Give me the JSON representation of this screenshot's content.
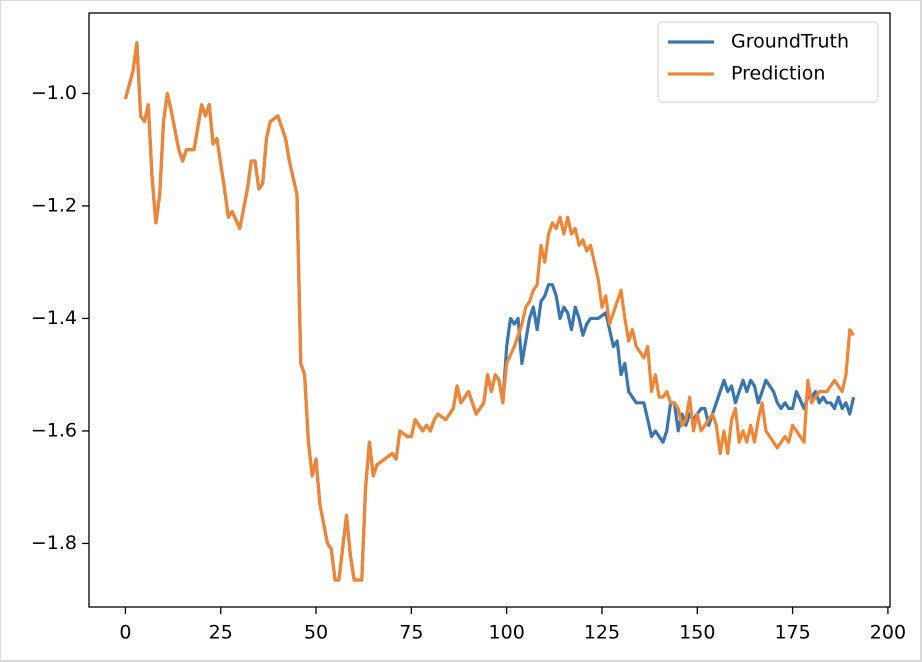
{
  "chart_data": {
    "type": "line",
    "xlim": [
      -9.55,
      200.55
    ],
    "ylim": [
      -1.913,
      -0.857
    ],
    "xticks": [
      0,
      25,
      50,
      75,
      100,
      125,
      150,
      175,
      200
    ],
    "yticks": [
      {
        "value": -1.8,
        "label": "−1.8"
      },
      {
        "value": -1.6,
        "label": "−1.6"
      },
      {
        "value": -1.4,
        "label": "−1.4"
      },
      {
        "value": -1.2,
        "label": "−1.2"
      },
      {
        "value": -1.0,
        "label": "−1.0"
      }
    ],
    "legend": "upper right",
    "series": [
      {
        "name": "GroundTruth",
        "color": "#3a75ae",
        "x": [
          0,
          2,
          3,
          4,
          5,
          6,
          7,
          8,
          9,
          10,
          11,
          12,
          14,
          15,
          16,
          18,
          19,
          20,
          21,
          22,
          23,
          24,
          26,
          27,
          28,
          30,
          32,
          33,
          34,
          35,
          36,
          37,
          38,
          40,
          42,
          43,
          45,
          46,
          47,
          48,
          49,
          50,
          51,
          53,
          54,
          55,
          56,
          58,
          59,
          60,
          62,
          63,
          64,
          65,
          66,
          68,
          70,
          71,
          72,
          74,
          75,
          76,
          78,
          79,
          80,
          81,
          82,
          84,
          85,
          86,
          87,
          88,
          90,
          91,
          92,
          94,
          95,
          96,
          97,
          98,
          99,
          100,
          101,
          102,
          103,
          104,
          105,
          106,
          107,
          108,
          109,
          110,
          111,
          112,
          113,
          114,
          115,
          116,
          117,
          118,
          119,
          120,
          121,
          122,
          124,
          126,
          127,
          128,
          129,
          130,
          131,
          132,
          134,
          136,
          137,
          138,
          139,
          141,
          142,
          143,
          144,
          145,
          146,
          147,
          148,
          149,
          151,
          152,
          153,
          154,
          155,
          156,
          157,
          158,
          159,
          160,
          161,
          162,
          163,
          164,
          165,
          166,
          167,
          168,
          170,
          171,
          172,
          173,
          174,
          175,
          176,
          178,
          179,
          180,
          181,
          182,
          183,
          184,
          185,
          186,
          187,
          188,
          189,
          190,
          191
        ],
        "values": [
          -1.01,
          -0.96,
          -0.91,
          -1.04,
          -1.05,
          -1.02,
          -1.15,
          -1.23,
          -1.18,
          -1.05,
          -1.0,
          -1.03,
          -1.1,
          -1.12,
          -1.1,
          -1.1,
          -1.06,
          -1.02,
          -1.04,
          -1.02,
          -1.09,
          -1.08,
          -1.17,
          -1.22,
          -1.21,
          -1.24,
          -1.17,
          -1.12,
          -1.12,
          -1.17,
          -1.16,
          -1.08,
          -1.05,
          -1.04,
          -1.08,
          -1.12,
          -1.18,
          -1.48,
          -1.5,
          -1.62,
          -1.68,
          -1.65,
          -1.73,
          -1.8,
          -1.81,
          -1.865,
          -1.865,
          -1.75,
          -1.82,
          -1.865,
          -1.865,
          -1.7,
          -1.62,
          -1.68,
          -1.66,
          -1.65,
          -1.64,
          -1.65,
          -1.6,
          -1.61,
          -1.61,
          -1.58,
          -1.6,
          -1.59,
          -1.6,
          -1.58,
          -1.57,
          -1.58,
          -1.57,
          -1.56,
          -1.52,
          -1.55,
          -1.53,
          -1.55,
          -1.57,
          -1.55,
          -1.5,
          -1.53,
          -1.5,
          -1.51,
          -1.55,
          -1.45,
          -1.4,
          -1.41,
          -1.4,
          -1.48,
          -1.44,
          -1.4,
          -1.38,
          -1.42,
          -1.37,
          -1.36,
          -1.34,
          -1.34,
          -1.36,
          -1.4,
          -1.38,
          -1.39,
          -1.42,
          -1.38,
          -1.4,
          -1.43,
          -1.41,
          -1.4,
          -1.4,
          -1.39,
          -1.42,
          -1.45,
          -1.44,
          -1.5,
          -1.48,
          -1.53,
          -1.55,
          -1.55,
          -1.58,
          -1.61,
          -1.6,
          -1.62,
          -1.6,
          -1.55,
          -1.55,
          -1.6,
          -1.57,
          -1.59,
          -1.57,
          -1.58,
          -1.56,
          -1.56,
          -1.59,
          -1.57,
          -1.55,
          -1.53,
          -1.51,
          -1.53,
          -1.52,
          -1.55,
          -1.53,
          -1.51,
          -1.53,
          -1.51,
          -1.52,
          -1.55,
          -1.53,
          -1.51,
          -1.53,
          -1.55,
          -1.56,
          -1.55,
          -1.56,
          -1.56,
          -1.53,
          -1.56,
          -1.54,
          -1.54,
          -1.53,
          -1.55,
          -1.54,
          -1.55,
          -1.55,
          -1.56,
          -1.54,
          -1.56,
          -1.55,
          -1.57,
          -1.54
        ]
      },
      {
        "name": "Prediction",
        "color": "#ef8636",
        "x": [
          0,
          2,
          3,
          4,
          5,
          6,
          7,
          8,
          9,
          10,
          11,
          12,
          14,
          15,
          16,
          18,
          19,
          20,
          21,
          22,
          23,
          24,
          26,
          27,
          28,
          30,
          32,
          33,
          34,
          35,
          36,
          37,
          38,
          40,
          42,
          43,
          45,
          46,
          47,
          48,
          49,
          50,
          51,
          53,
          54,
          55,
          56,
          58,
          59,
          60,
          62,
          63,
          64,
          65,
          66,
          68,
          70,
          71,
          72,
          74,
          75,
          76,
          78,
          79,
          80,
          81,
          82,
          84,
          85,
          86,
          87,
          88,
          90,
          91,
          92,
          94,
          95,
          96,
          97,
          98,
          99,
          100,
          102,
          104,
          105,
          106,
          107,
          108,
          109,
          110,
          111,
          112,
          113,
          114,
          115,
          116,
          117,
          118,
          119,
          120,
          121,
          122,
          123,
          124,
          125,
          126,
          127,
          128,
          129,
          130,
          131,
          132,
          133,
          134,
          135,
          136,
          137,
          138,
          139,
          140,
          141,
          142,
          143,
          144,
          145,
          146,
          147,
          148,
          149,
          150,
          151,
          152,
          153,
          154,
          155,
          156,
          157,
          158,
          159,
          160,
          161,
          162,
          163,
          164,
          165,
          166,
          167,
          168,
          169,
          170,
          171,
          172,
          173,
          174,
          175,
          176,
          177,
          178,
          179,
          180,
          182,
          184,
          186,
          188,
          189,
          190,
          191
        ],
        "values": [
          -1.01,
          -0.96,
          -0.91,
          -1.04,
          -1.05,
          -1.02,
          -1.15,
          -1.23,
          -1.18,
          -1.05,
          -1.0,
          -1.03,
          -1.1,
          -1.12,
          -1.1,
          -1.1,
          -1.06,
          -1.02,
          -1.04,
          -1.02,
          -1.09,
          -1.08,
          -1.17,
          -1.22,
          -1.21,
          -1.24,
          -1.17,
          -1.12,
          -1.12,
          -1.17,
          -1.16,
          -1.08,
          -1.05,
          -1.04,
          -1.08,
          -1.12,
          -1.18,
          -1.48,
          -1.5,
          -1.62,
          -1.68,
          -1.65,
          -1.73,
          -1.8,
          -1.81,
          -1.865,
          -1.865,
          -1.75,
          -1.82,
          -1.865,
          -1.865,
          -1.7,
          -1.62,
          -1.68,
          -1.66,
          -1.65,
          -1.64,
          -1.65,
          -1.6,
          -1.61,
          -1.61,
          -1.58,
          -1.6,
          -1.59,
          -1.6,
          -1.58,
          -1.57,
          -1.58,
          -1.57,
          -1.56,
          -1.52,
          -1.55,
          -1.53,
          -1.55,
          -1.57,
          -1.55,
          -1.5,
          -1.53,
          -1.5,
          -1.51,
          -1.55,
          -1.48,
          -1.45,
          -1.41,
          -1.38,
          -1.37,
          -1.35,
          -1.34,
          -1.27,
          -1.3,
          -1.25,
          -1.23,
          -1.24,
          -1.22,
          -1.25,
          -1.22,
          -1.25,
          -1.24,
          -1.27,
          -1.26,
          -1.28,
          -1.27,
          -1.3,
          -1.33,
          -1.38,
          -1.36,
          -1.41,
          -1.39,
          -1.37,
          -1.35,
          -1.4,
          -1.44,
          -1.42,
          -1.45,
          -1.46,
          -1.47,
          -1.45,
          -1.53,
          -1.5,
          -1.54,
          -1.54,
          -1.53,
          -1.55,
          -1.55,
          -1.56,
          -1.59,
          -1.58,
          -1.54,
          -1.6,
          -1.57,
          -1.6,
          -1.59,
          -1.58,
          -1.57,
          -1.59,
          -1.64,
          -1.6,
          -1.64,
          -1.58,
          -1.56,
          -1.62,
          -1.6,
          -1.62,
          -1.59,
          -1.62,
          -1.58,
          -1.55,
          -1.6,
          -1.61,
          -1.62,
          -1.63,
          -1.62,
          -1.61,
          -1.62,
          -1.59,
          -1.6,
          -1.61,
          -1.62,
          -1.51,
          -1.55,
          -1.53,
          -1.53,
          -1.51,
          -1.53,
          -1.5,
          -1.42,
          -1.43
        ]
      }
    ]
  }
}
